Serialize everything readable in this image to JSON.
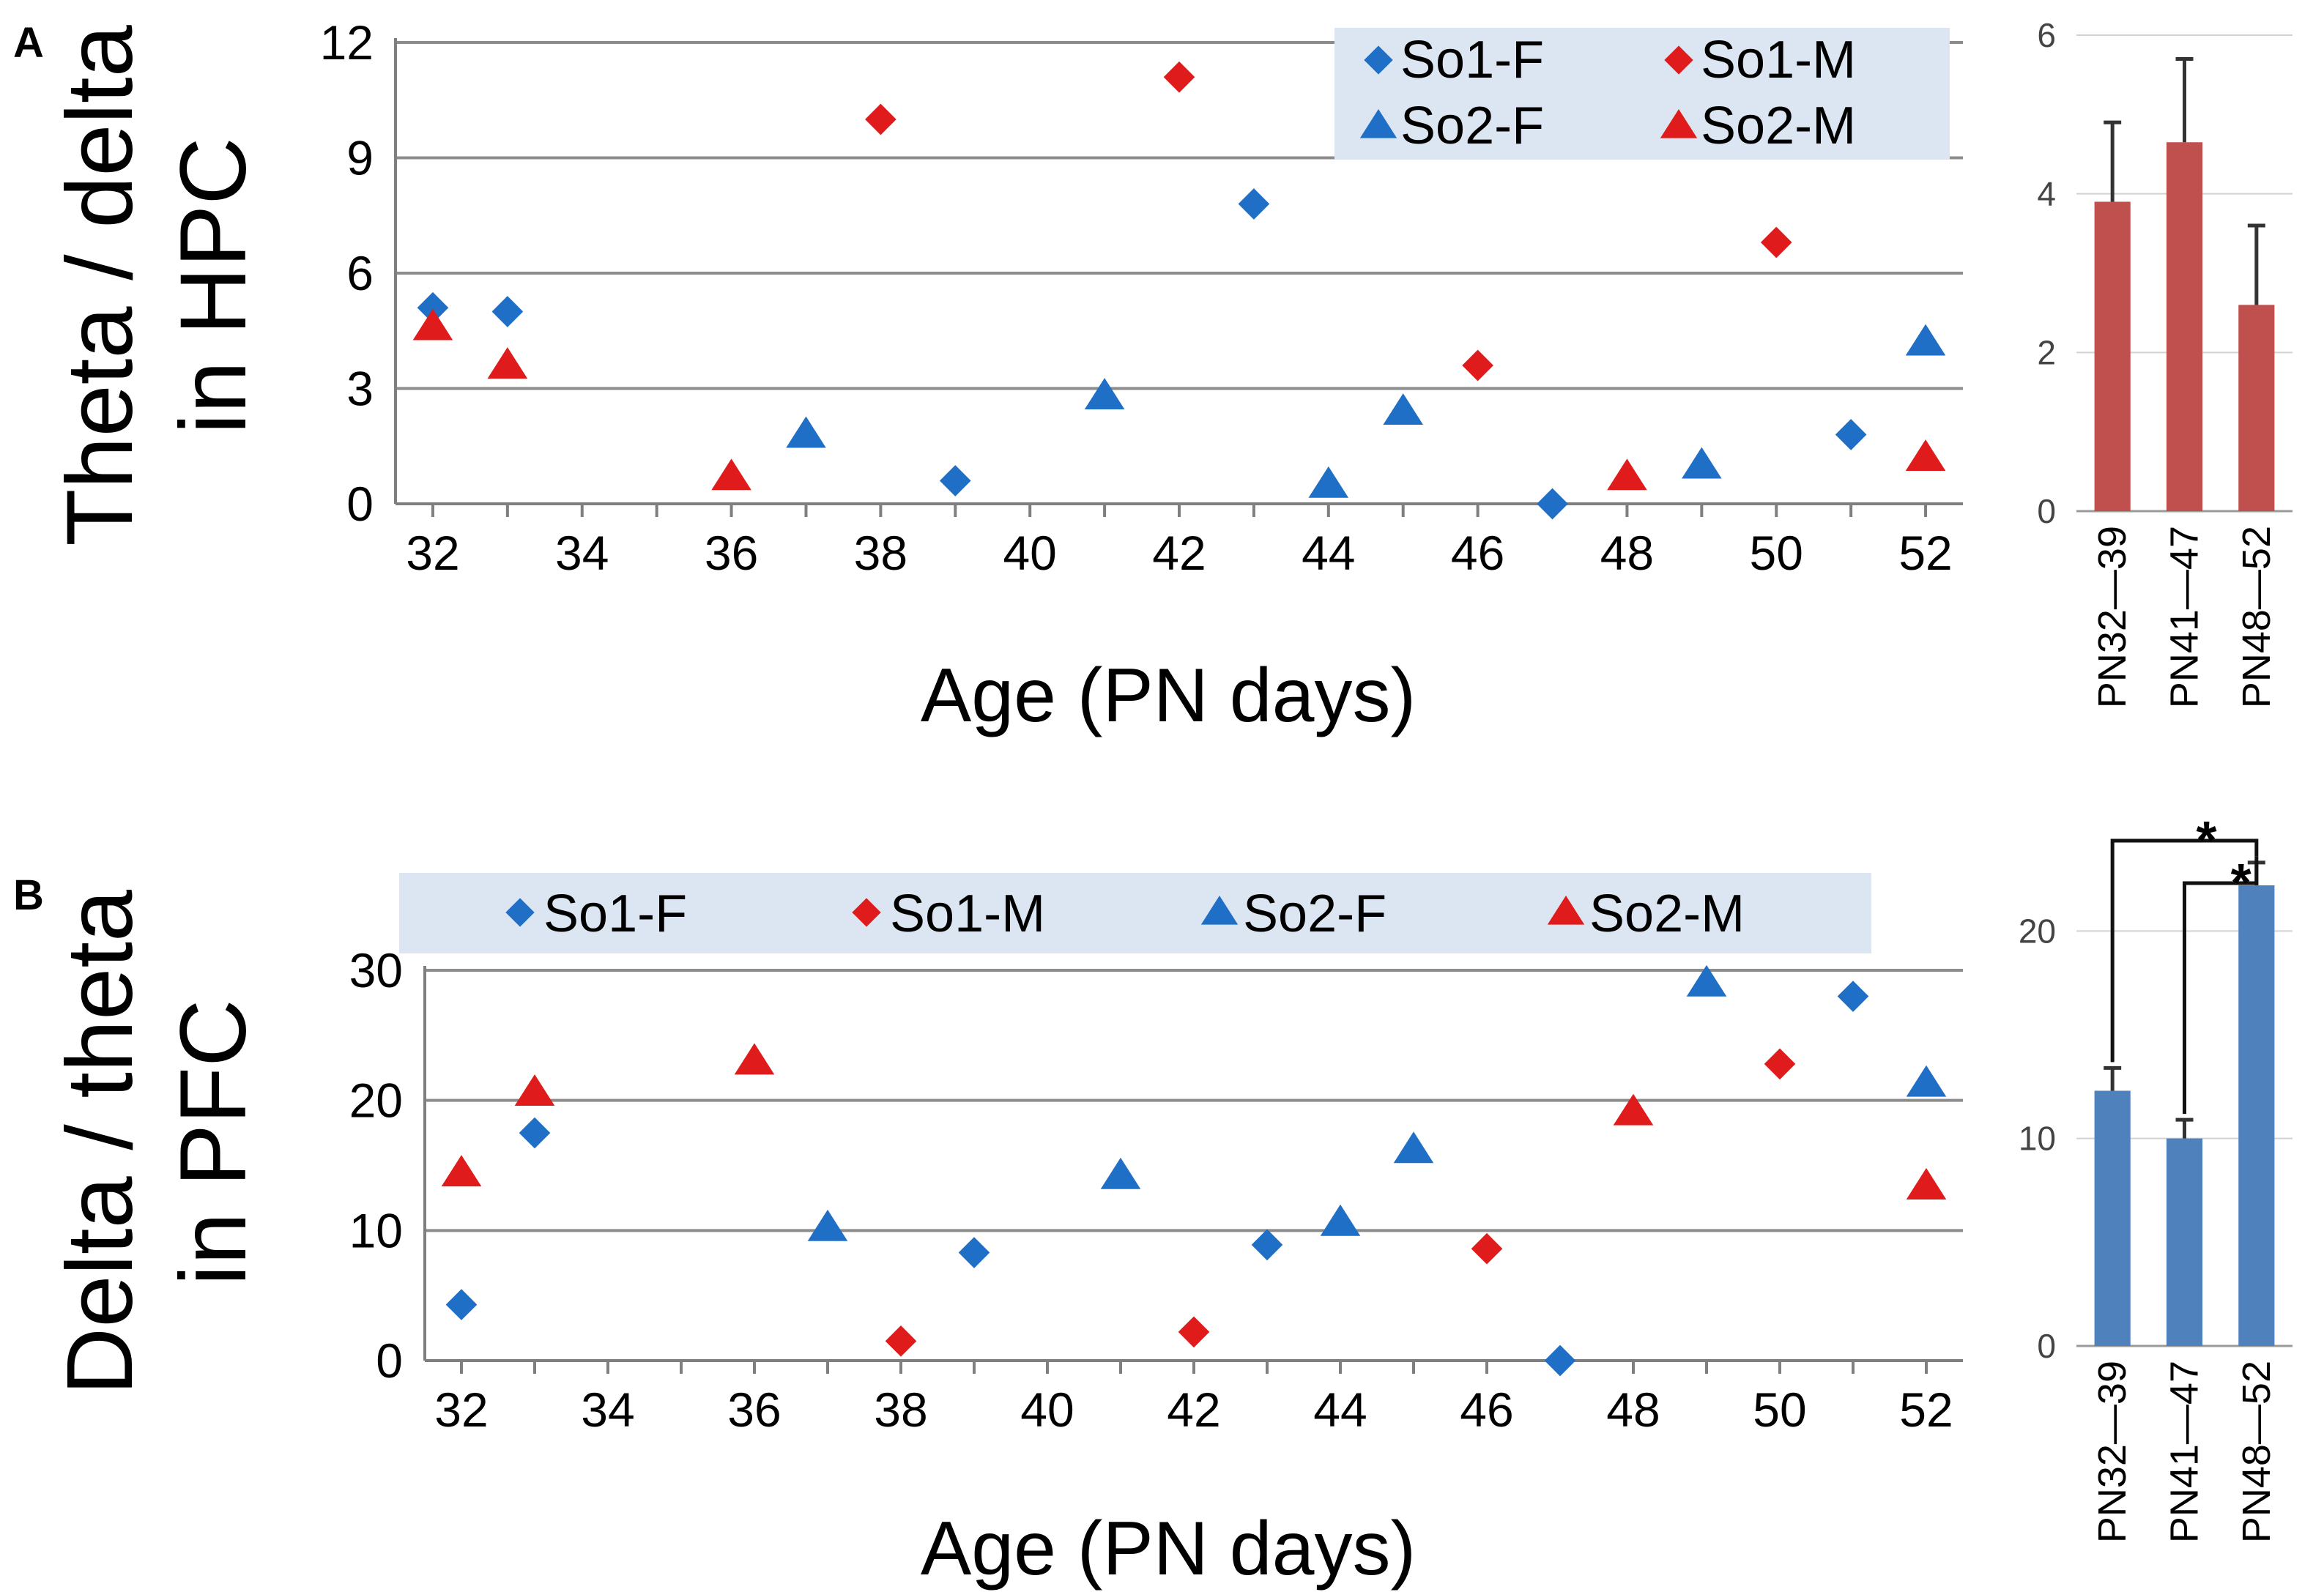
{
  "colors": {
    "female": "#1f6fc6",
    "male": "#e01b1b",
    "bar_A": "#c0504d",
    "bar_B": "#4f81bd",
    "legend_bg": "#dce6f2"
  },
  "chart_data": [
    {
      "id": "A-scatter",
      "panel": "A",
      "type": "scatter",
      "ylabel_line1": "Theta / delta",
      "ylabel_line2": "in HPC",
      "xlabel": "Age (PN days)",
      "xlim": [
        31.5,
        52.5
      ],
      "ylim": [
        0,
        12
      ],
      "xticks": [
        32,
        34,
        36,
        38,
        40,
        42,
        44,
        46,
        48,
        50,
        52
      ],
      "yticks": [
        0,
        3,
        6,
        9,
        12
      ],
      "legend_placement": "top-right, 2 columns",
      "series": [
        {
          "name": "So1-F",
          "marker": "diamond",
          "color": "female",
          "points": [
            [
              32,
              5.1
            ],
            [
              33,
              5.0
            ],
            [
              39,
              0.6
            ],
            [
              43,
              7.8
            ],
            [
              47,
              0.0
            ],
            [
              51,
              1.8
            ]
          ]
        },
        {
          "name": "So1-M",
          "marker": "diamond",
          "color": "male",
          "points": [
            [
              38,
              10.0
            ],
            [
              42,
              11.1
            ],
            [
              46,
              3.6
            ],
            [
              50,
              6.8
            ]
          ]
        },
        {
          "name": "So2-F",
          "marker": "triangle",
          "color": "female",
          "points": [
            [
              37,
              1.8
            ],
            [
              41,
              2.8
            ],
            [
              44,
              0.5
            ],
            [
              45,
              2.4
            ],
            [
              49,
              1.0
            ],
            [
              52,
              4.2
            ]
          ]
        },
        {
          "name": "So2-M",
          "marker": "triangle",
          "color": "male",
          "points": [
            [
              32,
              4.6
            ],
            [
              33,
              3.6
            ],
            [
              36,
              0.7
            ],
            [
              48,
              0.7
            ],
            [
              52,
              1.2
            ]
          ]
        }
      ]
    },
    {
      "id": "A-bar",
      "panel": "A",
      "type": "bar",
      "categories": [
        "PN32—39",
        "PN41—47",
        "PN48—52"
      ],
      "values": [
        3.9,
        4.65,
        2.6
      ],
      "errors": [
        1.0,
        1.05,
        1.0
      ],
      "ylim": [
        0,
        6
      ],
      "yticks": [
        0,
        2,
        4,
        6
      ],
      "color": "bar_A"
    },
    {
      "id": "B-scatter",
      "panel": "B",
      "type": "scatter",
      "ylabel_line1": "Delta / theta",
      "ylabel_line2": "in PFC",
      "xlabel": "Age (PN days)",
      "xlim": [
        31.5,
        52.5
      ],
      "ylim": [
        0,
        30
      ],
      "xticks": [
        32,
        34,
        36,
        38,
        40,
        42,
        44,
        46,
        48,
        50,
        52
      ],
      "yticks": [
        0,
        10,
        20,
        30
      ],
      "legend_placement": "top, single row",
      "series": [
        {
          "name": "So1-F",
          "marker": "diamond",
          "color": "female",
          "points": [
            [
              32,
              4.3
            ],
            [
              33,
              17.5
            ],
            [
              39,
              8.3
            ],
            [
              43,
              8.9
            ],
            [
              47,
              0.0
            ],
            [
              51,
              28.0
            ]
          ]
        },
        {
          "name": "So1-M",
          "marker": "diamond",
          "color": "male",
          "points": [
            [
              38,
              1.5
            ],
            [
              42,
              2.2
            ],
            [
              46,
              8.6
            ],
            [
              50,
              22.8
            ]
          ]
        },
        {
          "name": "So2-F",
          "marker": "triangle",
          "color": "female",
          "points": [
            [
              37,
              10.2
            ],
            [
              41,
              14.2
            ],
            [
              44,
              10.6
            ],
            [
              45,
              16.2
            ],
            [
              49,
              29.0
            ],
            [
              52,
              21.3
            ]
          ]
        },
        {
          "name": "So2-M",
          "marker": "triangle",
          "color": "male",
          "points": [
            [
              32,
              14.4
            ],
            [
              33,
              20.6
            ],
            [
              36,
              23.0
            ],
            [
              48,
              19.1
            ],
            [
              52,
              13.4
            ]
          ]
        }
      ]
    },
    {
      "id": "B-bar",
      "panel": "B",
      "type": "bar",
      "categories": [
        "PN32—39",
        "PN41—47",
        "PN48—52"
      ],
      "values": [
        12.3,
        10.0,
        22.2
      ],
      "errors": [
        1.1,
        0.9,
        1.1
      ],
      "ylim": [
        0,
        24
      ],
      "yticks": [
        0,
        10,
        20
      ],
      "color": "bar_B",
      "significance": [
        {
          "from": 0,
          "to": 2,
          "label": "*"
        },
        {
          "from": 1,
          "to": 2,
          "label": "*"
        }
      ]
    }
  ]
}
